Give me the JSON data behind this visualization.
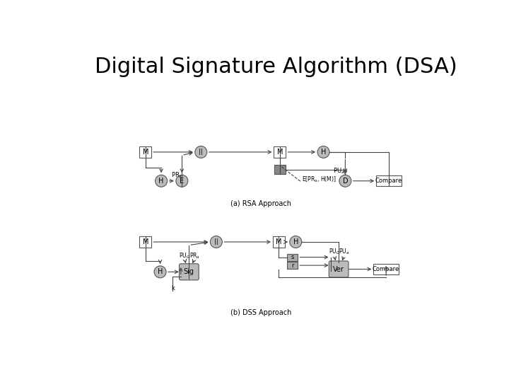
{
  "title": "Digital Signature Algorithm (DSA)",
  "title_fontsize": 22,
  "bg_color": "#ffffff",
  "box_facecolor_gray": "#bbbbbb",
  "box_facecolor_dark": "#888888",
  "box_edgecolor": "#555555",
  "line_color": "#444444",
  "caption_a": "(a) RSA Approach",
  "caption_b": "(b) DSS Approach"
}
